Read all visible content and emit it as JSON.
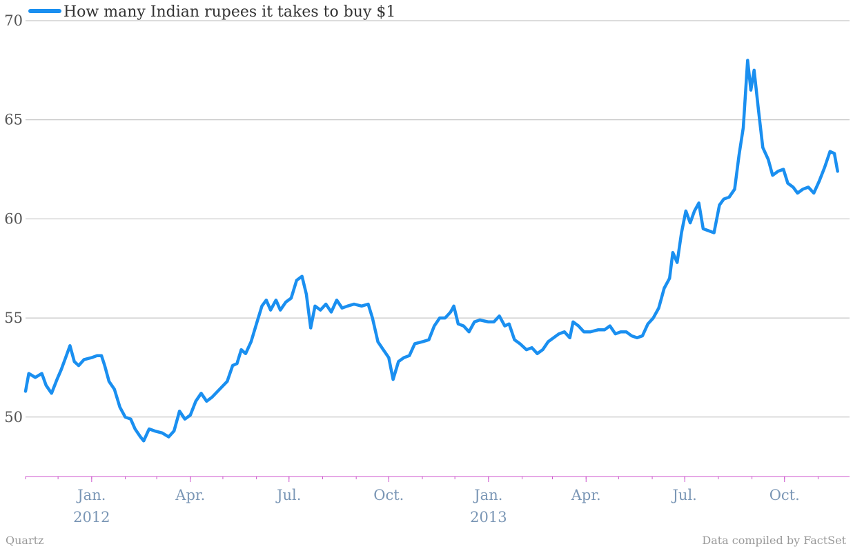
{
  "chart_data": {
    "type": "line",
    "title": "",
    "xlabel": "",
    "ylabel": "",
    "ylim": [
      47,
      70
    ],
    "yticks": [
      50,
      55,
      60,
      65,
      70
    ],
    "xlim": [
      "2011-11-01",
      "2013-11-30"
    ],
    "x_tick_labels": [
      {
        "date": "2012-01-01",
        "label": "Jan.",
        "sublabel": "2012"
      },
      {
        "date": "2012-04-01",
        "label": "Apr.",
        "sublabel": ""
      },
      {
        "date": "2012-07-01",
        "label": "Jul.",
        "sublabel": ""
      },
      {
        "date": "2012-10-01",
        "label": "Oct.",
        "sublabel": ""
      },
      {
        "date": "2013-01-01",
        "label": "Jan.",
        "sublabel": "2013"
      },
      {
        "date": "2013-04-01",
        "label": "Apr.",
        "sublabel": ""
      },
      {
        "date": "2013-07-01",
        "label": "Jul.",
        "sublabel": ""
      },
      {
        "date": "2013-10-01",
        "label": "Oct.",
        "sublabel": ""
      }
    ],
    "grid": true,
    "legend_position": "top-left",
    "series": [
      {
        "name": "How many Indian rupees it takes to buy $1",
        "color": "#1a8ff0",
        "points": [
          [
            "2011-11-01",
            51.3
          ],
          [
            "2011-11-04",
            52.2
          ],
          [
            "2011-11-10",
            52.0
          ],
          [
            "2011-11-16",
            52.2
          ],
          [
            "2011-11-20",
            51.6
          ],
          [
            "2011-11-25",
            51.2
          ],
          [
            "2011-11-30",
            51.9
          ],
          [
            "2011-12-04",
            52.4
          ],
          [
            "2011-12-08",
            53.0
          ],
          [
            "2011-12-12",
            53.6
          ],
          [
            "2011-12-16",
            52.8
          ],
          [
            "2011-12-20",
            52.6
          ],
          [
            "2011-12-25",
            52.9
          ],
          [
            "2012-01-01",
            53.0
          ],
          [
            "2012-01-06",
            53.1
          ],
          [
            "2012-01-10",
            53.1
          ],
          [
            "2012-01-13",
            52.6
          ],
          [
            "2012-01-17",
            51.8
          ],
          [
            "2012-01-22",
            51.4
          ],
          [
            "2012-01-27",
            50.5
          ],
          [
            "2012-02-01",
            50.0
          ],
          [
            "2012-02-06",
            49.9
          ],
          [
            "2012-02-10",
            49.4
          ],
          [
            "2012-02-15",
            49.0
          ],
          [
            "2012-02-18",
            48.8
          ],
          [
            "2012-02-23",
            49.4
          ],
          [
            "2012-02-28",
            49.3
          ],
          [
            "2012-03-06",
            49.2
          ],
          [
            "2012-03-12",
            49.0
          ],
          [
            "2012-03-17",
            49.3
          ],
          [
            "2012-03-22",
            50.3
          ],
          [
            "2012-03-27",
            49.9
          ],
          [
            "2012-04-01",
            50.1
          ],
          [
            "2012-04-06",
            50.8
          ],
          [
            "2012-04-11",
            51.2
          ],
          [
            "2012-04-16",
            50.8
          ],
          [
            "2012-04-21",
            51.0
          ],
          [
            "2012-04-28",
            51.4
          ],
          [
            "2012-05-05",
            51.8
          ],
          [
            "2012-05-10",
            52.6
          ],
          [
            "2012-05-14",
            52.7
          ],
          [
            "2012-05-18",
            53.4
          ],
          [
            "2012-05-22",
            53.2
          ],
          [
            "2012-05-27",
            53.8
          ],
          [
            "2012-06-01",
            54.7
          ],
          [
            "2012-06-06",
            55.6
          ],
          [
            "2012-06-10",
            55.9
          ],
          [
            "2012-06-14",
            55.4
          ],
          [
            "2012-06-19",
            55.9
          ],
          [
            "2012-06-23",
            55.4
          ],
          [
            "2012-06-28",
            55.8
          ],
          [
            "2012-07-03",
            56.0
          ],
          [
            "2012-07-08",
            56.9
          ],
          [
            "2012-07-13",
            57.1
          ],
          [
            "2012-07-17",
            56.2
          ],
          [
            "2012-07-21",
            54.5
          ],
          [
            "2012-07-25",
            55.6
          ],
          [
            "2012-07-30",
            55.4
          ],
          [
            "2012-08-04",
            55.7
          ],
          [
            "2012-08-09",
            55.3
          ],
          [
            "2012-08-14",
            55.9
          ],
          [
            "2012-08-19",
            55.5
          ],
          [
            "2012-08-24",
            55.6
          ],
          [
            "2012-08-30",
            55.7
          ],
          [
            "2012-09-06",
            55.6
          ],
          [
            "2012-09-12",
            55.7
          ],
          [
            "2012-09-16",
            55.0
          ],
          [
            "2012-09-21",
            53.8
          ],
          [
            "2012-09-26",
            53.4
          ],
          [
            "2012-10-01",
            53.0
          ],
          [
            "2012-10-05",
            51.9
          ],
          [
            "2012-10-10",
            52.8
          ],
          [
            "2012-10-15",
            53.0
          ],
          [
            "2012-10-20",
            53.1
          ],
          [
            "2012-10-25",
            53.7
          ],
          [
            "2012-11-01",
            53.8
          ],
          [
            "2012-11-07",
            53.9
          ],
          [
            "2012-11-12",
            54.6
          ],
          [
            "2012-11-17",
            55.0
          ],
          [
            "2012-11-22",
            55.0
          ],
          [
            "2012-11-27",
            55.3
          ],
          [
            "2012-11-30",
            55.6
          ],
          [
            "2012-12-04",
            54.7
          ],
          [
            "2012-12-09",
            54.6
          ],
          [
            "2012-12-14",
            54.3
          ],
          [
            "2012-12-19",
            54.8
          ],
          [
            "2012-12-24",
            54.9
          ],
          [
            "2013-01-01",
            54.8
          ],
          [
            "2013-01-06",
            54.8
          ],
          [
            "2013-01-11",
            55.1
          ],
          [
            "2013-01-16",
            54.6
          ],
          [
            "2013-01-20",
            54.7
          ],
          [
            "2013-01-25",
            53.9
          ],
          [
            "2013-01-30",
            53.7
          ],
          [
            "2013-02-05",
            53.4
          ],
          [
            "2013-02-10",
            53.5
          ],
          [
            "2013-02-15",
            53.2
          ],
          [
            "2013-02-20",
            53.4
          ],
          [
            "2013-02-25",
            53.8
          ],
          [
            "2013-03-02",
            54.0
          ],
          [
            "2013-03-07",
            54.2
          ],
          [
            "2013-03-12",
            54.3
          ],
          [
            "2013-03-17",
            54.0
          ],
          [
            "2013-03-20",
            54.8
          ],
          [
            "2013-03-25",
            54.6
          ],
          [
            "2013-03-30",
            54.3
          ],
          [
            "2013-04-05",
            54.3
          ],
          [
            "2013-04-12",
            54.4
          ],
          [
            "2013-04-18",
            54.4
          ],
          [
            "2013-04-23",
            54.6
          ],
          [
            "2013-04-28",
            54.2
          ],
          [
            "2013-05-03",
            54.3
          ],
          [
            "2013-05-08",
            54.3
          ],
          [
            "2013-05-13",
            54.1
          ],
          [
            "2013-05-18",
            54.0
          ],
          [
            "2013-05-23",
            54.1
          ],
          [
            "2013-05-28",
            54.7
          ],
          [
            "2013-06-02",
            55.0
          ],
          [
            "2013-06-07",
            55.5
          ],
          [
            "2013-06-12",
            56.5
          ],
          [
            "2013-06-17",
            57.0
          ],
          [
            "2013-06-20",
            58.3
          ],
          [
            "2013-06-24",
            57.8
          ],
          [
            "2013-06-28",
            59.3
          ],
          [
            "2013-07-02",
            60.4
          ],
          [
            "2013-07-06",
            59.8
          ],
          [
            "2013-07-10",
            60.4
          ],
          [
            "2013-07-14",
            60.8
          ],
          [
            "2013-07-18",
            59.5
          ],
          [
            "2013-07-23",
            59.4
          ],
          [
            "2013-07-28",
            59.3
          ],
          [
            "2013-08-02",
            60.7
          ],
          [
            "2013-08-06",
            61.0
          ],
          [
            "2013-08-11",
            61.1
          ],
          [
            "2013-08-16",
            61.5
          ],
          [
            "2013-08-20",
            63.2
          ],
          [
            "2013-08-24",
            64.6
          ],
          [
            "2013-08-28",
            68.0
          ],
          [
            "2013-08-31",
            66.5
          ],
          [
            "2013-09-03",
            67.5
          ],
          [
            "2013-09-07",
            65.5
          ],
          [
            "2013-09-11",
            63.6
          ],
          [
            "2013-09-16",
            63.0
          ],
          [
            "2013-09-20",
            62.2
          ],
          [
            "2013-09-25",
            62.4
          ],
          [
            "2013-09-30",
            62.5
          ],
          [
            "2013-10-04",
            61.8
          ],
          [
            "2013-10-09",
            61.6
          ],
          [
            "2013-10-13",
            61.3
          ],
          [
            "2013-10-18",
            61.5
          ],
          [
            "2013-10-23",
            61.6
          ],
          [
            "2013-10-28",
            61.3
          ],
          [
            "2013-11-02",
            61.9
          ],
          [
            "2013-11-07",
            62.6
          ],
          [
            "2013-11-12",
            63.4
          ],
          [
            "2013-11-16",
            63.3
          ],
          [
            "2013-11-19",
            62.4
          ]
        ]
      }
    ]
  },
  "credits": {
    "left": "Quartz",
    "right": "Data compiled by FactSet"
  }
}
